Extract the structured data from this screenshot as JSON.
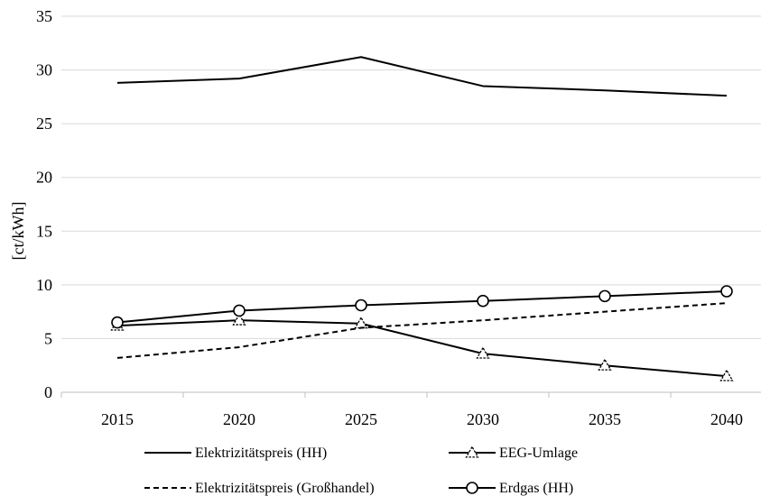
{
  "chart_data": {
    "type": "line",
    "title": "",
    "xlabel": "",
    "ylabel": "[ct/kWh]",
    "categories": [
      "2015",
      "2020",
      "2025",
      "2030",
      "2035",
      "2040"
    ],
    "ylim": [
      0,
      35
    ],
    "yticks": [
      0,
      5,
      10,
      15,
      20,
      25,
      30,
      35
    ],
    "grid": "horizontal",
    "legend_position": "bottom",
    "series": [
      {
        "name": "Elektrizitätspreis (HH)",
        "values": [
          28.8,
          29.2,
          31.2,
          28.5,
          28.1,
          27.6
        ],
        "line_style": "solid",
        "marker": "none",
        "color": "#000000"
      },
      {
        "name": "EEG-Umlage",
        "values": [
          6.2,
          6.7,
          6.4,
          3.6,
          2.5,
          1.5
        ],
        "line_style": "solid",
        "marker": "triangle",
        "color": "#000000"
      },
      {
        "name": "Elektrizitätspreis (Großhandel)",
        "values": [
          3.2,
          4.2,
          6.0,
          6.7,
          7.5,
          8.3
        ],
        "line_style": "dashed",
        "marker": "none",
        "color": "#000000"
      },
      {
        "name": "Erdgas (HH)",
        "values": [
          6.5,
          7.6,
          8.1,
          8.5,
          8.95,
          9.4
        ],
        "line_style": "solid",
        "marker": "circle",
        "color": "#000000"
      }
    ],
    "colors": {
      "grid": "#d9d9d9",
      "axis": "#bfbfbf"
    }
  }
}
